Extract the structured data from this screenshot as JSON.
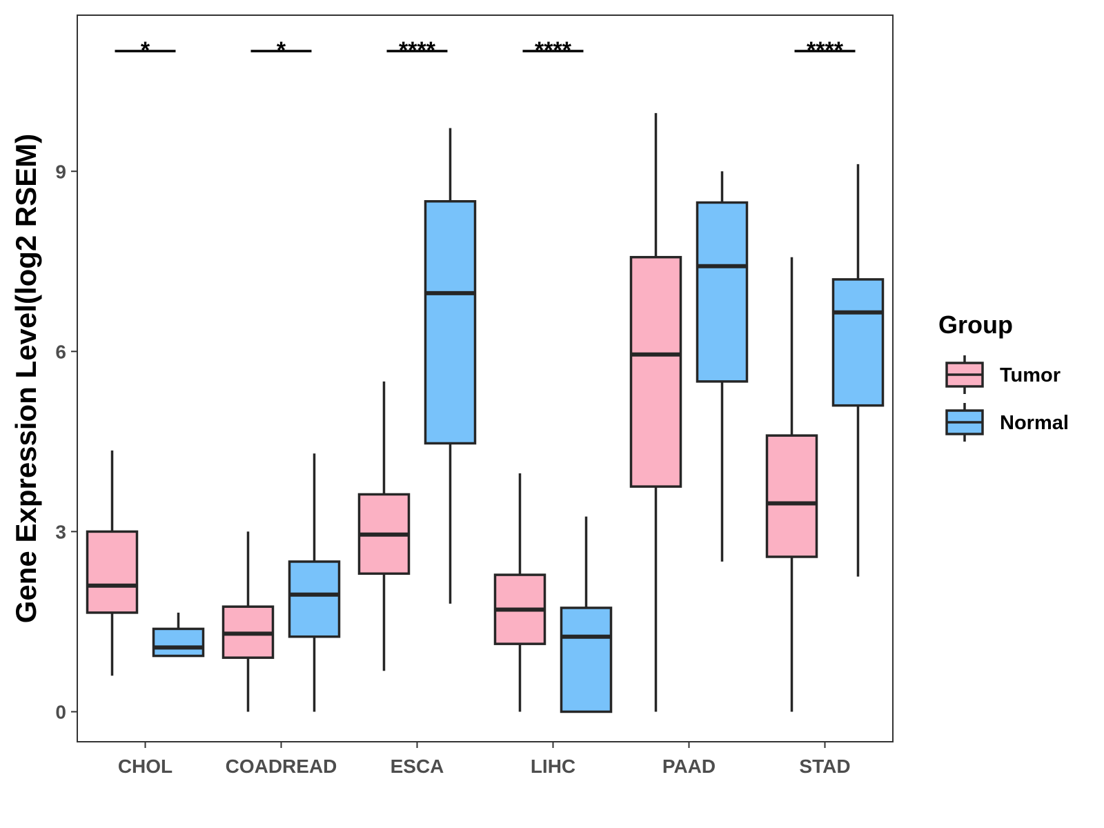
{
  "chart_data": {
    "type": "boxplot",
    "title": "",
    "xlabel": "",
    "ylabel": "Gene Expression Level(log2 RSEM)",
    "ylim": [
      -0.5,
      11.6
    ],
    "yticks": [
      0,
      3,
      6,
      9
    ],
    "ytick_labels": [
      "0",
      "3",
      "6",
      "9"
    ],
    "categories": [
      "CHOL",
      "COADREAD",
      "ESCA",
      "LIHC",
      "PAAD",
      "STAD"
    ],
    "legend": {
      "title": "Group",
      "position": "right",
      "entries": [
        "Tumor",
        "Normal"
      ]
    },
    "series": [
      {
        "name": "Tumor",
        "color": "#FBB1C3",
        "boxes": [
          {
            "whisker_low": 0.6,
            "q1": 1.65,
            "median": 2.1,
            "q3": 3.0,
            "whisker_high": 4.35
          },
          {
            "whisker_low": 0.0,
            "q1": 0.9,
            "median": 1.3,
            "q3": 1.75,
            "whisker_high": 3.0
          },
          {
            "whisker_low": 0.68,
            "q1": 2.3,
            "median": 2.95,
            "q3": 3.62,
            "whisker_high": 5.5
          },
          {
            "whisker_low": 0.0,
            "q1": 1.13,
            "median": 1.7,
            "q3": 2.28,
            "whisker_high": 3.97
          },
          {
            "whisker_low": 0.0,
            "q1": 3.75,
            "median": 5.95,
            "q3": 7.57,
            "whisker_high": 9.97
          },
          {
            "whisker_low": 0.0,
            "q1": 2.58,
            "median": 3.47,
            "q3": 4.6,
            "whisker_high": 7.57
          }
        ]
      },
      {
        "name": "Normal",
        "color": "#78C2FA",
        "boxes": [
          {
            "whisker_low": 0.93,
            "q1": 0.93,
            "median": 1.07,
            "q3": 1.38,
            "whisker_high": 1.65
          },
          {
            "whisker_low": 0.0,
            "q1": 1.25,
            "median": 1.95,
            "q3": 2.5,
            "whisker_high": 4.3
          },
          {
            "whisker_low": 1.8,
            "q1": 4.47,
            "median": 6.97,
            "q3": 8.5,
            "whisker_high": 9.72
          },
          {
            "whisker_low": 0.0,
            "q1": 0.0,
            "median": 1.25,
            "q3": 1.73,
            "whisker_high": 3.25
          },
          {
            "whisker_low": 2.5,
            "q1": 5.5,
            "median": 7.42,
            "q3": 8.48,
            "whisker_high": 9.0
          },
          {
            "whisker_low": 2.25,
            "q1": 5.1,
            "median": 6.65,
            "q3": 7.2,
            "whisker_high": 9.12
          }
        ]
      }
    ],
    "annotations": [
      {
        "category": "CHOL",
        "label": "*"
      },
      {
        "category": "COADREAD",
        "label": "*"
      },
      {
        "category": "ESCA",
        "label": "****"
      },
      {
        "category": "LIHC",
        "label": "****"
      },
      {
        "category": "STAD",
        "label": "****"
      }
    ],
    "colors": {
      "outline": "#262626",
      "tick_text": "#4d4d4d",
      "panel_border": "#333333"
    }
  }
}
